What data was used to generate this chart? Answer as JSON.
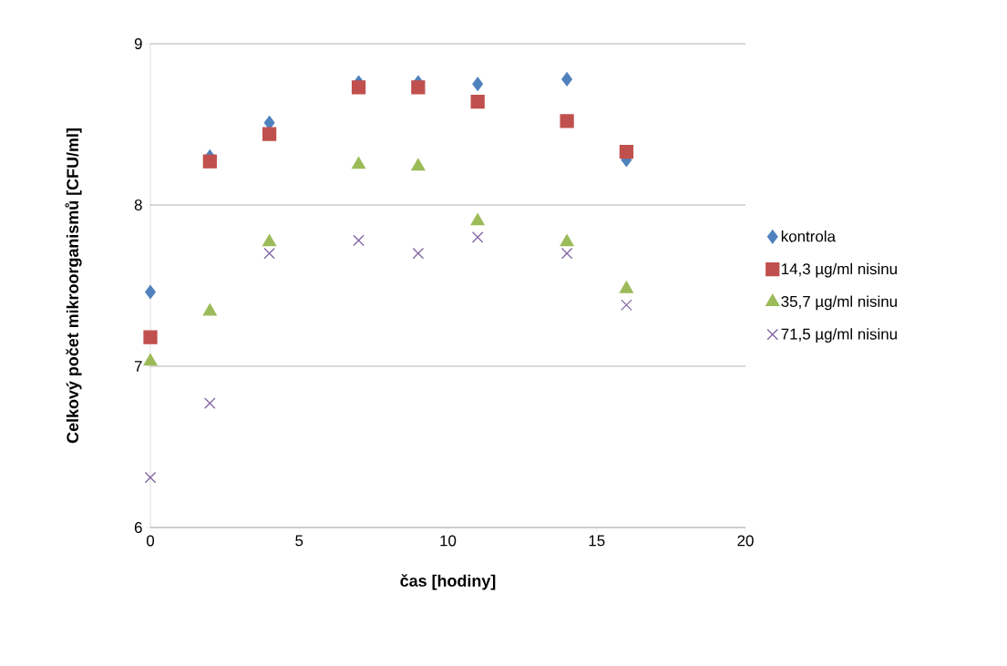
{
  "chart_data": {
    "type": "scatter",
    "xlabel": "čas [hodiny]",
    "ylabel": "Celkový počet mikroorganismů  [CFU/ml]",
    "x": [
      0,
      2,
      4,
      7,
      9,
      11,
      14,
      16
    ],
    "xlim": [
      0,
      20
    ],
    "xticks": [
      0,
      5,
      10,
      15,
      20
    ],
    "ylim": [
      6,
      9
    ],
    "yticks": [
      6,
      7,
      8,
      9
    ],
    "grid": "y",
    "legend": "right",
    "series": [
      {
        "name": "kontrola",
        "color": "#4f81bd",
        "marker": "diamond",
        "values": [
          7.46,
          8.3,
          8.51,
          8.76,
          8.76,
          8.75,
          8.78,
          8.28
        ]
      },
      {
        "name": "14,3 µg/ml nisinu",
        "color": "#c0504d",
        "marker": "square",
        "values": [
          7.18,
          8.27,
          8.44,
          8.73,
          8.73,
          8.64,
          8.52,
          8.33
        ]
      },
      {
        "name": "35,7 µg/ml nisinu",
        "color": "#9bbb59",
        "marker": "triangle",
        "values": [
          7.03,
          7.34,
          7.77,
          8.25,
          8.24,
          7.9,
          7.77,
          7.48
        ]
      },
      {
        "name": "71,5 µg/ml nisinu",
        "color": "#8064a2",
        "marker": "cross",
        "values": [
          6.31,
          6.77,
          7.7,
          7.78,
          7.7,
          7.8,
          7.7,
          7.38
        ]
      }
    ]
  }
}
